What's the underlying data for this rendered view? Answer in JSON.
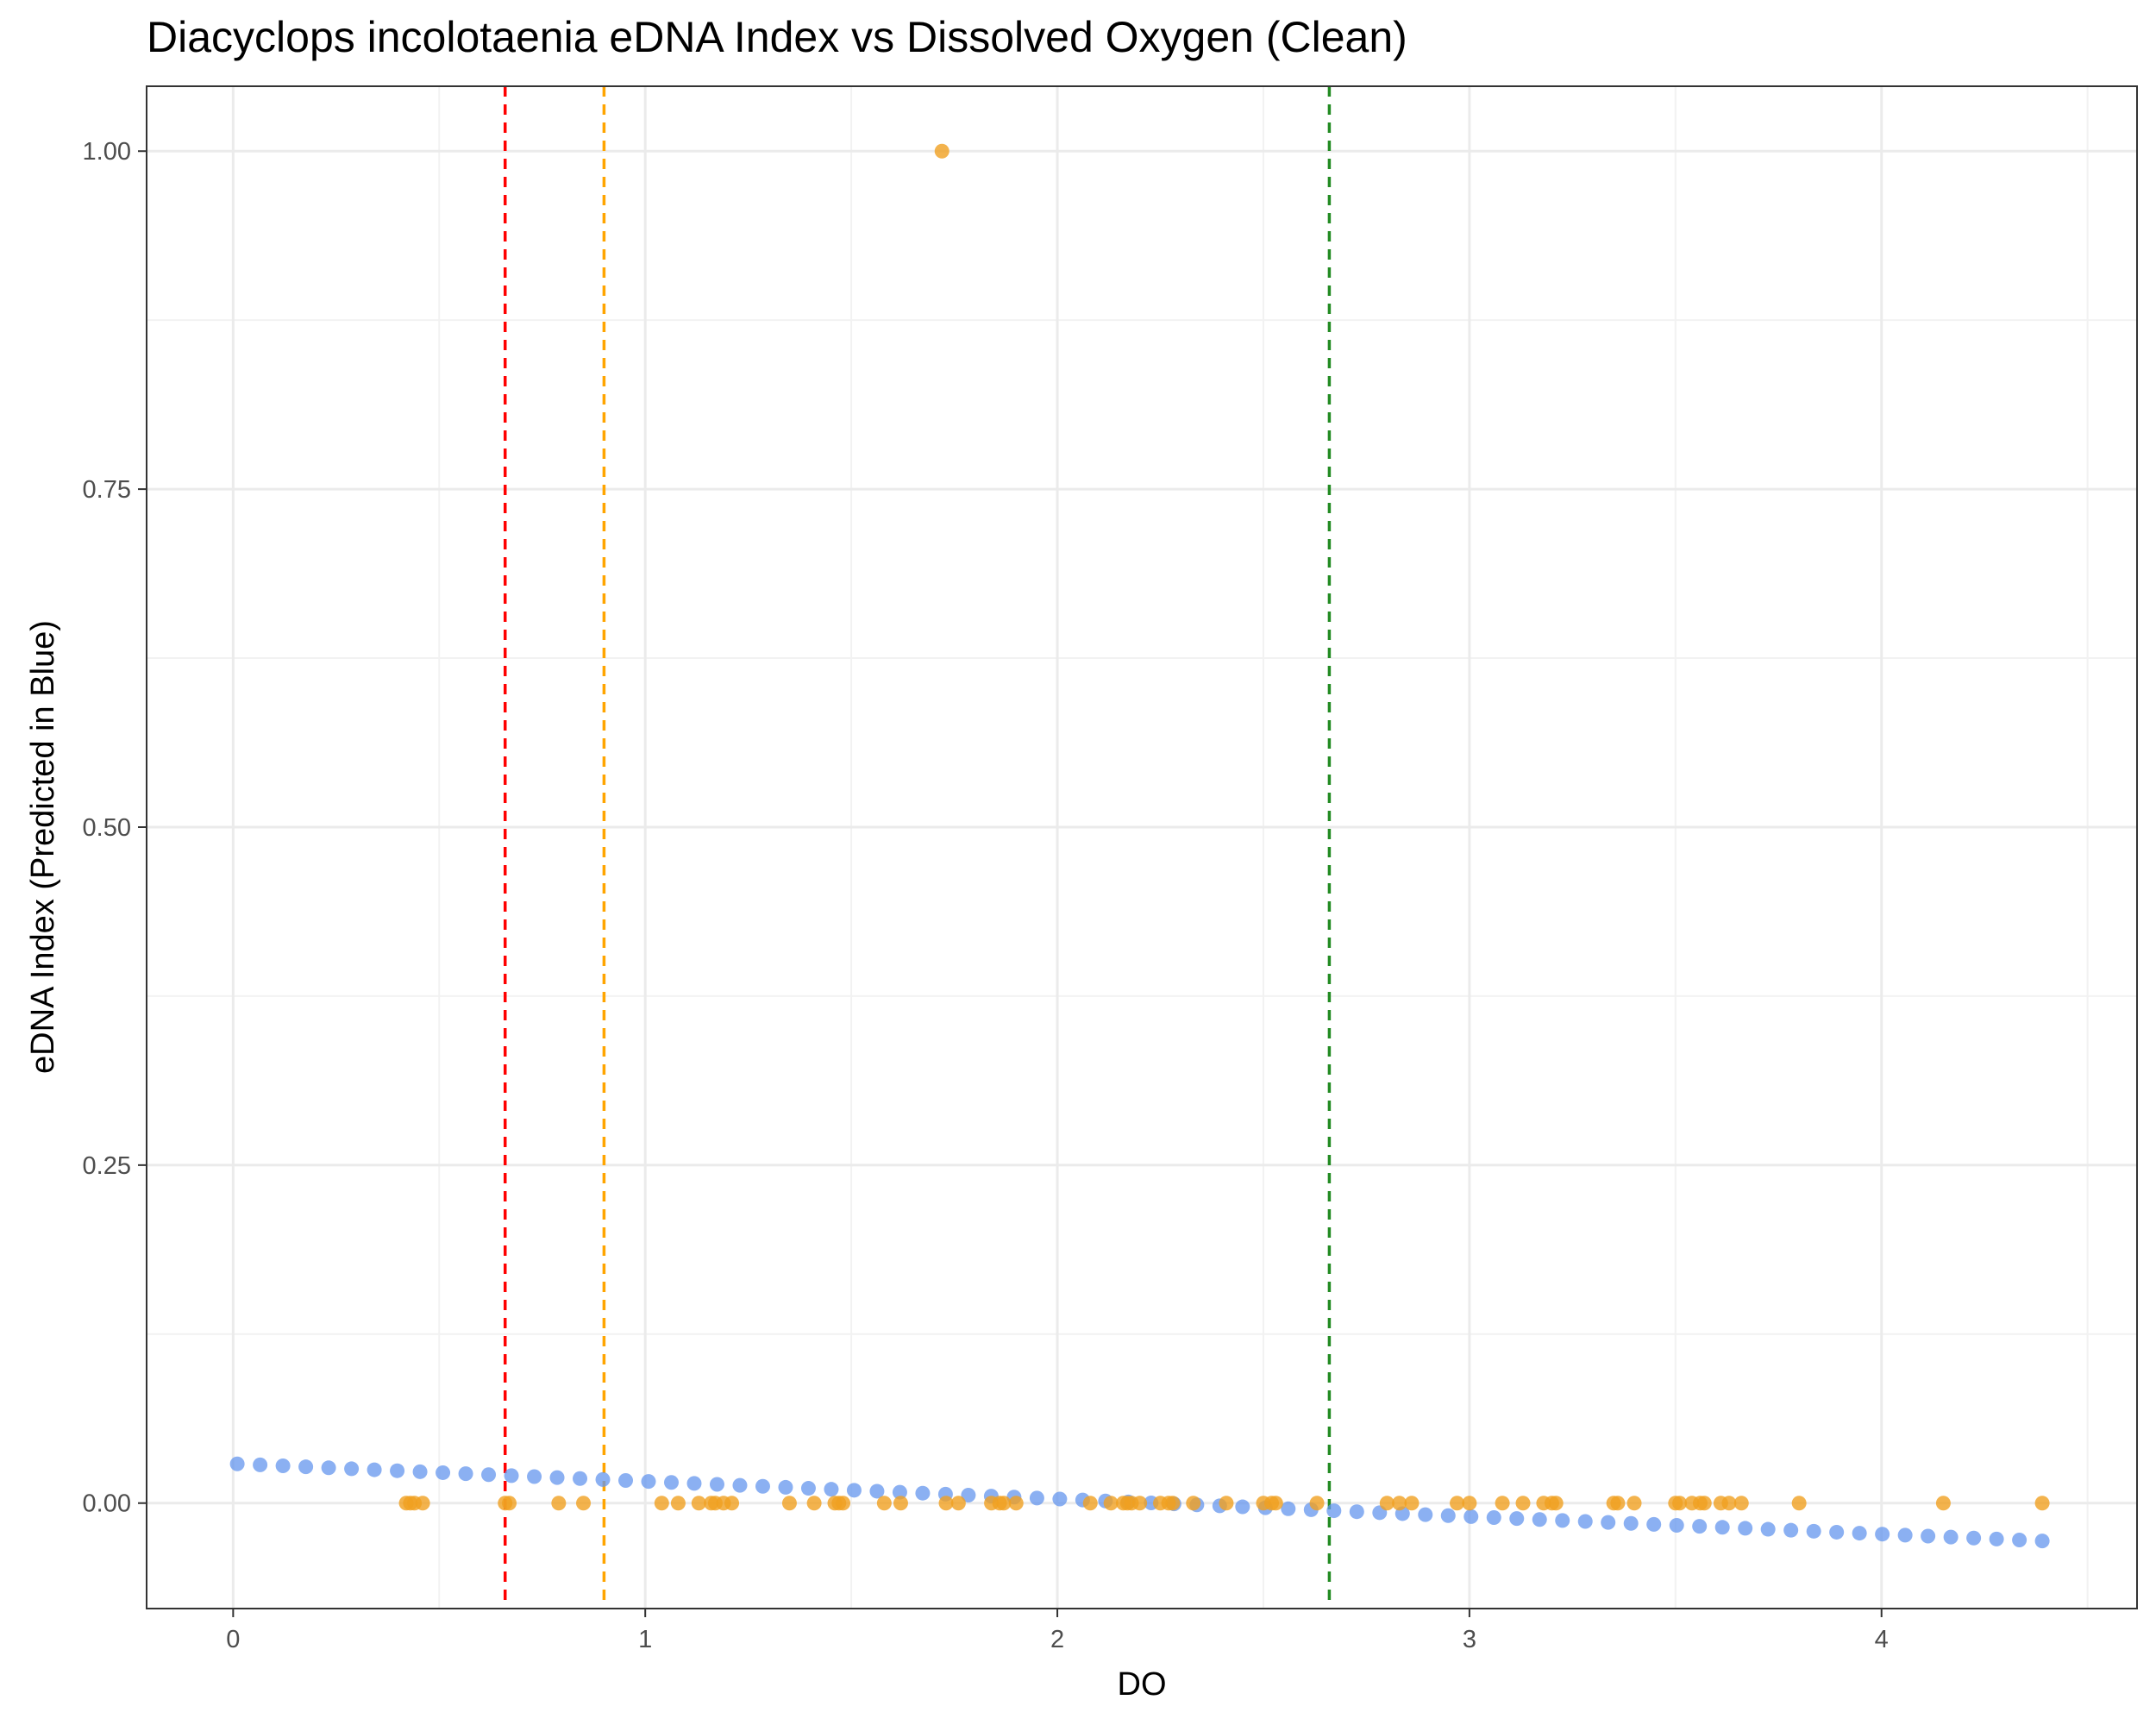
{
  "chart_data": {
    "type": "scatter",
    "title": "Diacyclops incolotaenia eDNA Index vs Dissolved Oxygen (Clean)",
    "xlabel": "DO",
    "ylabel": "eDNA Index (Predicted in Blue)",
    "xlim": [
      -0.21,
      4.62
    ],
    "ylim": [
      -0.078,
      1.048
    ],
    "x_ticks": [
      {
        "value": 0,
        "label": "0"
      },
      {
        "value": 1,
        "label": "1"
      },
      {
        "value": 2,
        "label": "2"
      },
      {
        "value": 3,
        "label": "3"
      },
      {
        "value": 4,
        "label": "4"
      }
    ],
    "y_ticks": [
      {
        "value": 0.0,
        "label": "0.00"
      },
      {
        "value": 0.25,
        "label": "0.25"
      },
      {
        "value": 0.5,
        "label": "0.50"
      },
      {
        "value": 0.75,
        "label": "0.75"
      },
      {
        "value": 1.0,
        "label": "1.00"
      }
    ],
    "grid": true,
    "legend": "none",
    "colors": {
      "observed": "#F0A020",
      "predicted": "#6495ED",
      "red_line": "#FF0000",
      "orange_line": "#FFA500",
      "green_line": "#228B22"
    },
    "vlines": [
      {
        "x": 0.66,
        "color": "red"
      },
      {
        "x": 0.9,
        "color": "orange"
      },
      {
        "x": 2.66,
        "color": "green"
      }
    ],
    "predicted": {
      "x_start": 0.01,
      "x_end": 4.39,
      "n": 80,
      "y_start": 0.029,
      "y_end": -0.028
    },
    "observed": {
      "x": [
        0.42,
        0.43,
        0.44,
        0.46,
        0.66,
        0.67,
        0.79,
        0.85,
        1.04,
        1.08,
        1.13,
        1.16,
        1.17,
        1.19,
        1.21,
        1.35,
        1.41,
        1.46,
        1.47,
        1.48,
        1.58,
        1.62,
        1.73,
        1.76,
        1.84,
        1.86,
        1.87,
        1.9,
        2.08,
        2.13,
        2.16,
        2.17,
        2.18,
        2.2,
        2.25,
        2.27,
        2.28,
        2.33,
        2.41,
        2.5,
        2.52,
        2.53,
        2.63,
        2.8,
        2.83,
        2.86,
        2.97,
        3.0,
        3.08,
        3.13,
        3.18,
        3.2,
        3.21,
        3.35,
        3.36,
        3.4,
        3.5,
        3.51,
        3.54,
        3.56,
        3.57,
        3.61,
        3.63,
        3.66,
        3.8,
        4.15,
        4.39,
        1.72
      ],
      "y": [
        0,
        0,
        0,
        0,
        0,
        0,
        0,
        0,
        0,
        0,
        0,
        0,
        0,
        0,
        0,
        0,
        0,
        0,
        0,
        0,
        0,
        0,
        0,
        0,
        0,
        0,
        0,
        0,
        0,
        0,
        0,
        0,
        0,
        0,
        0,
        0,
        0,
        0,
        0,
        0,
        0,
        0,
        0,
        0,
        0,
        0,
        0,
        0,
        0,
        0,
        0,
        0,
        0,
        0,
        0,
        0,
        0,
        0,
        0,
        0,
        0,
        0,
        0,
        0,
        0,
        0,
        0,
        1.0
      ]
    }
  }
}
